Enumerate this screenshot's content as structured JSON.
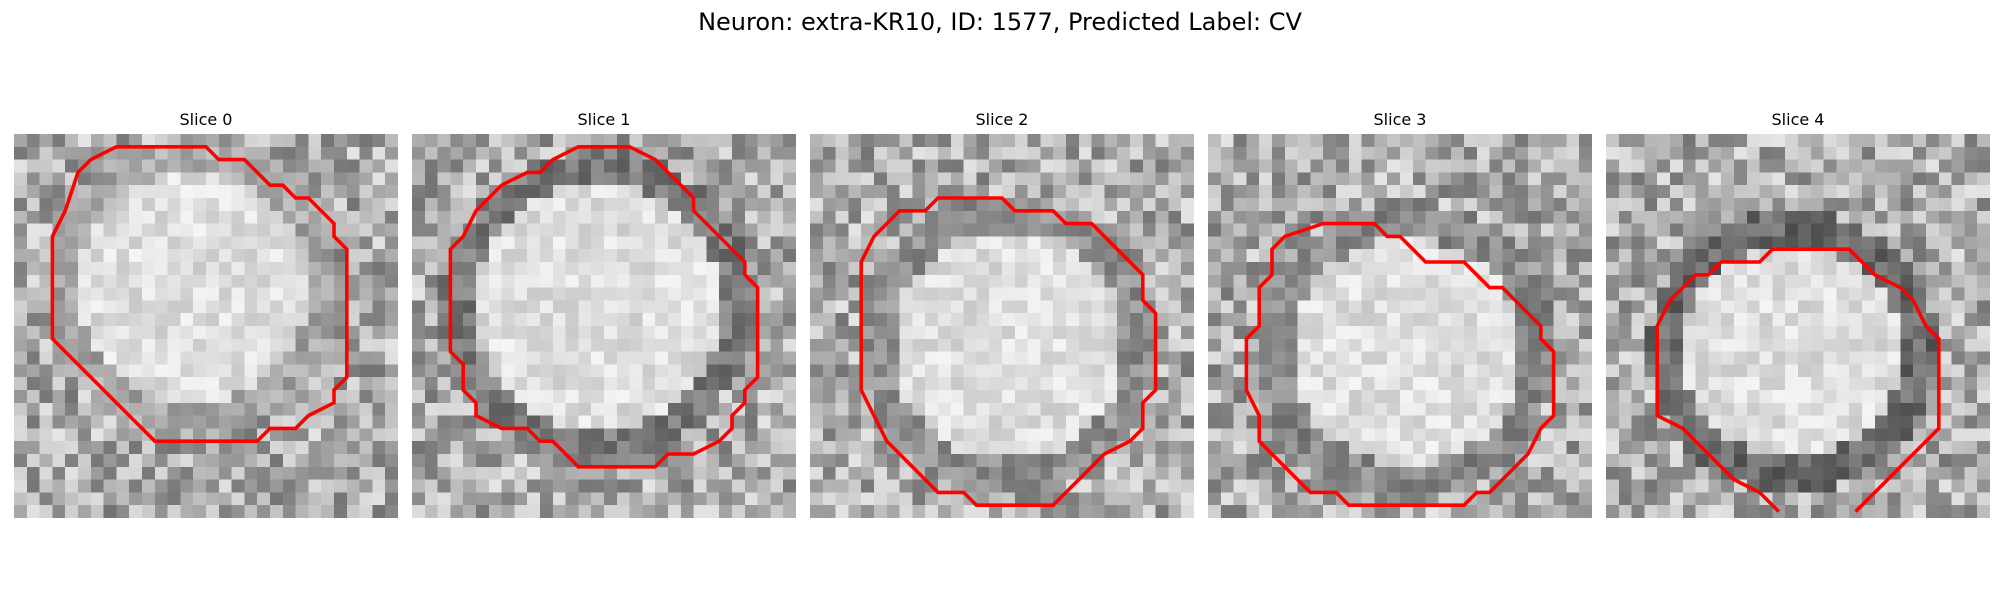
{
  "title": "Neuron: extra-KR10, ID: 1577, Predicted Label: CV",
  "panels": [
    {
      "label": "Slice 0"
    },
    {
      "label": "Slice 1"
    },
    {
      "label": "Slice 2"
    },
    {
      "label": "Slice 3"
    },
    {
      "label": "Slice 4"
    }
  ],
  "contour_color": "#ff0000",
  "colormap": "grayscale"
}
